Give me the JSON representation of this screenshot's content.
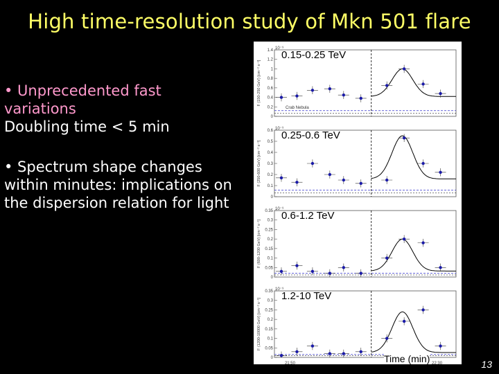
{
  "slide": {
    "title": "High time-resolution study of Mkn 501 flare",
    "page_number": "13"
  },
  "bullets": {
    "b1_main": "• Unprecedented fast variations",
    "b1_sub": "Doubling time < 5 min",
    "b2": "• Spectrum shape changes within minutes: implications on the dispersion relation for light"
  },
  "figure": {
    "xlabel": "Time (min)",
    "x_ticks": [
      "21:50",
      "22:30"
    ],
    "ref_label": "Crab Nebula",
    "exponent_label": "10⁻⁹",
    "colors": {
      "points": "#1a1aa8",
      "curve": "#000000",
      "reference": "#3333cc"
    }
  },
  "chart_data": [
    {
      "type": "scatter",
      "title": "0.15-0.25 TeV",
      "ylabel": "F (150-250 GeV) [cm⁻² s⁻¹]",
      "ylim": [
        0,
        1.4
      ],
      "yticks": [
        0,
        0.2,
        0.4,
        0.6,
        0.8,
        1,
        1.2,
        1.4
      ],
      "x": [
        0.4,
        1.3,
        2.2,
        3.2,
        4.0,
        5.0,
        6.5,
        7.5,
        8.6,
        9.6
      ],
      "y": [
        0.4,
        0.43,
        0.55,
        0.58,
        0.45,
        0.38,
        0.65,
        1.0,
        0.68,
        0.48
      ],
      "crab": 0.12,
      "peak": 1.0
    },
    {
      "type": "scatter",
      "title": "0.25-0.6 TeV",
      "ylabel": "F (250-600 GeV) [cm⁻² s⁻¹]",
      "ylim": [
        0,
        0.6
      ],
      "yticks": [
        0,
        0.1,
        0.2,
        0.3,
        0.4,
        0.5,
        0.6
      ],
      "x": [
        0.4,
        1.3,
        2.2,
        3.2,
        4.0,
        5.0,
        6.5,
        7.5,
        8.6,
        9.6
      ],
      "y": [
        0.17,
        0.13,
        0.3,
        0.2,
        0.15,
        0.12,
        0.15,
        0.53,
        0.3,
        0.22
      ],
      "crab": 0.06,
      "peak": 0.55
    },
    {
      "type": "scatter",
      "title": "0.6-1.2 TeV",
      "ylabel": "F (600-1200 GeV) [cm⁻² s⁻¹]",
      "ylim": [
        0,
        0.35
      ],
      "yticks": [
        0,
        0.05,
        0.1,
        0.15,
        0.2,
        0.25,
        0.3,
        0.35
      ],
      "x": [
        0.4,
        1.3,
        2.2,
        3.2,
        4.0,
        5.0,
        6.5,
        7.5,
        8.6,
        9.6
      ],
      "y": [
        0.03,
        0.06,
        0.03,
        0.02,
        0.05,
        0.02,
        0.1,
        0.2,
        0.18,
        0.05
      ],
      "crab": 0.02,
      "peak": 0.2
    },
    {
      "type": "scatter",
      "title": "1.2-10 TeV",
      "ylabel": "F (1200-10000 GeV) [cm⁻² s⁻¹]",
      "ylim": [
        0,
        0.35
      ],
      "yticks": [
        0,
        0.05,
        0.1,
        0.15,
        0.2,
        0.25,
        0.3,
        0.35
      ],
      "x": [
        0.4,
        1.3,
        2.2,
        3.2,
        4.0,
        5.0,
        6.5,
        7.5,
        8.6,
        9.6
      ],
      "y": [
        0.01,
        0.03,
        0.06,
        0.02,
        0.02,
        0.03,
        0.1,
        0.19,
        0.25,
        0.06
      ],
      "crab": 0.015,
      "peak": 0.24
    }
  ]
}
